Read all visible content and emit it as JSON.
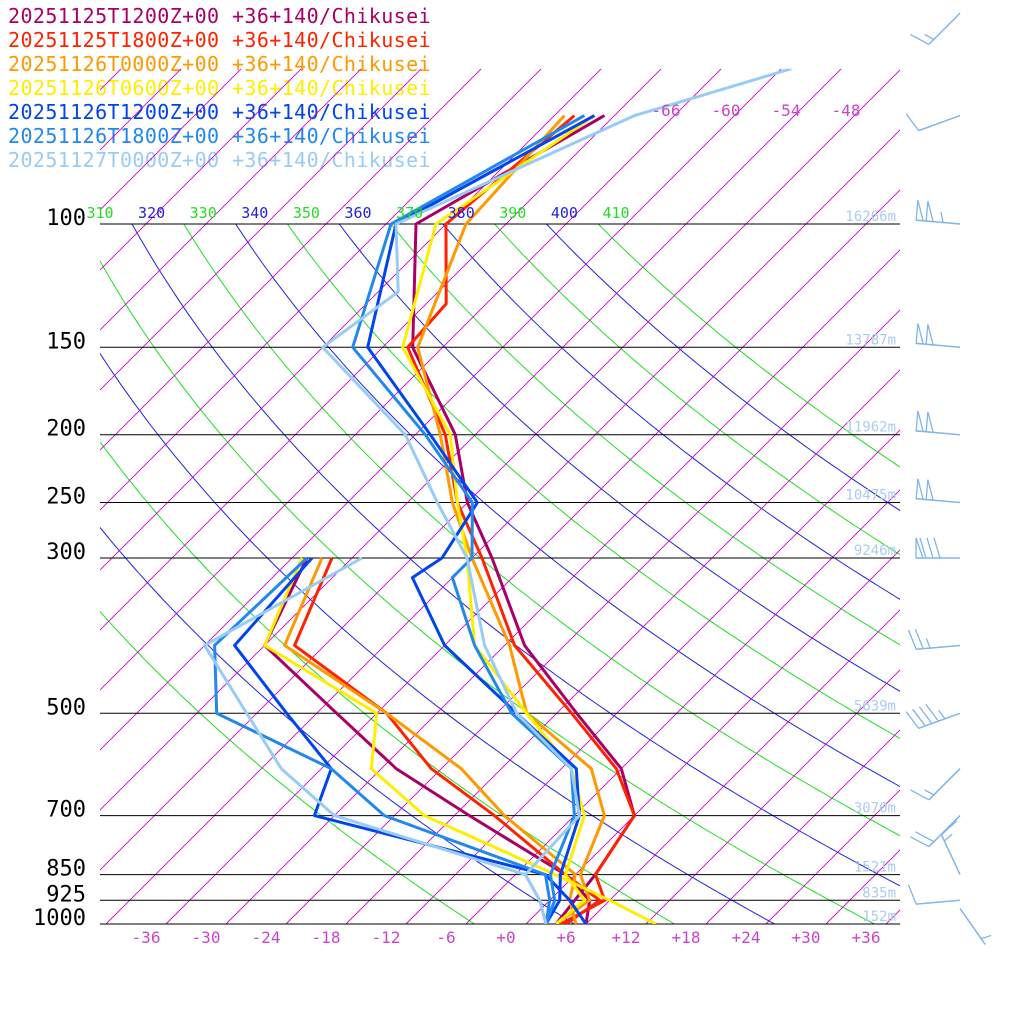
{
  "chart_data": {
    "type": "line",
    "subtype": "skew-T log-P sounding",
    "series": [
      {
        "name": "20251125T1200Z+00 +36+140/Chikusei",
        "color": "#aa0066",
        "t_points": [
          [
            1000,
            8.0
          ],
          [
            925,
            6.0
          ],
          [
            850,
            1.0
          ],
          [
            700,
            -14.5
          ],
          [
            600,
            -26.5
          ],
          [
            500,
            -38.0
          ],
          [
            400,
            -52.0
          ],
          [
            300,
            -56.5
          ]
        ],
        "td_points": [
          [
            1000,
            5.0
          ],
          [
            925,
            4.5
          ],
          [
            850,
            4.0
          ],
          [
            700,
            2.0
          ],
          [
            600,
            -4.0
          ],
          [
            500,
            -14.0
          ],
          [
            400,
            -26.0
          ],
          [
            300,
            -38.0
          ],
          [
            250,
            -46.0
          ],
          [
            200,
            -54.0
          ],
          [
            150,
            -67.0
          ],
          [
            100,
            -79.0
          ],
          [
            70,
            -71.0
          ]
        ]
      },
      {
        "name": "20251125T1800Z+00 +36+140/Chikusei",
        "color": "#ff2200",
        "t_points": [
          [
            1000,
            6.0
          ],
          [
            925,
            7.0
          ],
          [
            850,
            1.0
          ],
          [
            700,
            -12.0
          ],
          [
            600,
            -23.0
          ],
          [
            500,
            -33.0
          ],
          [
            400,
            -49.0
          ],
          [
            300,
            -54.0
          ]
        ],
        "td_points": [
          [
            1000,
            5.5
          ],
          [
            925,
            7.5
          ],
          [
            850,
            4.0
          ],
          [
            700,
            2.0
          ],
          [
            600,
            -4.5
          ],
          [
            500,
            -14.5
          ],
          [
            400,
            -27.0
          ],
          [
            300,
            -39.0
          ],
          [
            250,
            -47.0
          ],
          [
            200,
            -55.0
          ],
          [
            150,
            -67.5
          ],
          [
            130,
            -68.0
          ],
          [
            100,
            -76.0
          ],
          [
            70,
            -74.0
          ]
        ]
      },
      {
        "name": "20251126T0000Z+00 +36+140/Chikusei",
        "color": "#ff9900",
        "t_points": [
          [
            1000,
            7.0
          ],
          [
            925,
            4.0
          ],
          [
            850,
            2.0
          ],
          [
            700,
            -11.0
          ],
          [
            600,
            -20.0
          ],
          [
            500,
            -33.0
          ],
          [
            400,
            -50.0
          ],
          [
            300,
            -55.0
          ]
        ],
        "td_points": [
          [
            1000,
            5.0
          ],
          [
            925,
            6.0
          ],
          [
            850,
            2.5
          ],
          [
            700,
            -1.0
          ],
          [
            600,
            -7.0
          ],
          [
            500,
            -19.0
          ],
          [
            400,
            -27.5
          ],
          [
            300,
            -40.0
          ],
          [
            250,
            -47.5
          ],
          [
            200,
            -55.5
          ],
          [
            150,
            -66.5
          ],
          [
            100,
            -74.0
          ],
          [
            70,
            -75.0
          ]
        ]
      },
      {
        "name": "20251126T0600Z+00 +36+140/Chikusei",
        "color": "#ffee00",
        "t_points": [
          [
            1000,
            15.0
          ],
          [
            925,
            8.0
          ],
          [
            850,
            0.0
          ],
          [
            700,
            -19.0
          ],
          [
            600,
            -29.0
          ],
          [
            500,
            -34.0
          ],
          [
            400,
            -52.0
          ],
          [
            300,
            -57.0
          ]
        ],
        "td_points": [
          [
            1000,
            5.0
          ],
          [
            925,
            5.5
          ],
          [
            850,
            1.0
          ],
          [
            700,
            -3.0
          ],
          [
            600,
            -9.0
          ],
          [
            500,
            -19.0
          ],
          [
            400,
            -31.0
          ],
          [
            300,
            -40.5
          ],
          [
            250,
            -47.0
          ],
          [
            200,
            -54.5
          ],
          [
            150,
            -68.0
          ],
          [
            100,
            -77.0
          ],
          [
            70,
            -72.0
          ]
        ]
      },
      {
        "name": "20251126T1200Z+00 +36+140/Chikusei",
        "color": "#0044ee",
        "t_points": [
          [
            1000,
            8.0
          ],
          [
            925,
            4.0
          ],
          [
            850,
            -1.0
          ],
          [
            700,
            -30.0
          ],
          [
            600,
            -33.0
          ],
          [
            500,
            -43.0
          ],
          [
            400,
            -55.0
          ],
          [
            300,
            -56.0
          ]
        ],
        "td_points": [
          [
            1000,
            4.0
          ],
          [
            925,
            3.0
          ],
          [
            850,
            0.5
          ],
          [
            700,
            -3.5
          ],
          [
            600,
            -8.5
          ],
          [
            500,
            -20.0
          ],
          [
            400,
            -34.0
          ],
          [
            320,
            -44.0
          ],
          [
            300,
            -43.0
          ],
          [
            250,
            -45.0
          ],
          [
            200,
            -56.5
          ],
          [
            150,
            -71.5
          ],
          [
            100,
            -81.0
          ],
          [
            70,
            -72.0
          ]
        ]
      },
      {
        "name": "20251126T1800Z+00 +36+140/Chikusei",
        "color": "#2288ee",
        "t_points": [
          [
            1000,
            4.0
          ],
          [
            925,
            2.0
          ],
          [
            850,
            -1.0
          ],
          [
            700,
            -23.0
          ],
          [
            600,
            -33.0
          ],
          [
            500,
            -50.0
          ],
          [
            400,
            -57.0
          ],
          [
            300,
            -56.5
          ]
        ],
        "td_points": [
          [
            1000,
            4.0
          ],
          [
            925,
            2.5
          ],
          [
            850,
            -0.5
          ],
          [
            700,
            -4.0
          ],
          [
            600,
            -9.0
          ],
          [
            500,
            -20.5
          ],
          [
            400,
            -31.0
          ],
          [
            320,
            -40.0
          ],
          [
            300,
            -40.0
          ],
          [
            250,
            -45.5
          ],
          [
            200,
            -57.0
          ],
          [
            150,
            -73.0
          ],
          [
            100,
            -81.5
          ],
          [
            70,
            -73.0
          ]
        ]
      },
      {
        "name": "20251127T0000Z+00 +36+140/Chikusei",
        "color": "#99ccf5",
        "t_points": [
          [
            1000,
            4.0
          ],
          [
            925,
            1.0
          ],
          [
            850,
            -3.0
          ],
          [
            700,
            -28.0
          ],
          [
            600,
            -38.0
          ],
          [
            500,
            -47.0
          ],
          [
            400,
            -58.0
          ],
          [
            300,
            -51.0
          ]
        ],
        "td_points": [
          [
            1000,
            4.0
          ],
          [
            925,
            1.0
          ],
          [
            850,
            -3.0
          ],
          [
            700,
            -3.5
          ],
          [
            600,
            -9.0
          ],
          [
            500,
            -20.0
          ],
          [
            400,
            -30.0
          ],
          [
            300,
            -40.5
          ],
          [
            250,
            -49.0
          ],
          [
            200,
            -59.0
          ],
          [
            150,
            -76.0
          ],
          [
            125,
            -74.0
          ],
          [
            100,
            -81.0
          ],
          [
            70,
            -68.0
          ],
          [
            60,
            -57.0
          ]
        ]
      }
    ],
    "pressure_ticks": [
      "100",
      "150",
      "200",
      "250",
      "300",
      "500",
      "700",
      "850",
      "925",
      "1000"
    ],
    "pressure_levels": [
      100,
      150,
      200,
      250,
      300,
      500,
      700,
      850,
      925,
      1000
    ],
    "height_labels": [
      {
        "p": 100,
        "text": "16266m"
      },
      {
        "p": 150,
        "text": "13787m"
      },
      {
        "p": 200,
        "text": "11962m"
      },
      {
        "p": 250,
        "text": "10475m"
      },
      {
        "p": 300,
        "text": "9246m"
      },
      {
        "p": 500,
        "text": "5639m"
      },
      {
        "p": 700,
        "text": "3070m"
      },
      {
        "p": 850,
        "text": "1521m"
      },
      {
        "p": 925,
        "text": "835m"
      },
      {
        "p": 1000,
        "text": "152m"
      }
    ],
    "temperature_ticks": [
      "-36",
      "-30",
      "-24",
      "-18",
      "-12",
      "-6",
      "+0",
      "+6",
      "+12",
      "+18",
      "+24",
      "+30",
      "+36"
    ],
    "temperature_tick_values": [
      -36,
      -30,
      -24,
      -18,
      -12,
      -6,
      0,
      6,
      12,
      18,
      24,
      30,
      36
    ],
    "upper_temperature_ticks": [
      "-66",
      "-60",
      "-54",
      "-48"
    ],
    "upper_temperature_tick_values": [
      -66,
      -60,
      -54,
      -48
    ],
    "theta_labels": [
      "310",
      "320",
      "330",
      "340",
      "350",
      "360",
      "370",
      "380",
      "390",
      "400",
      "410"
    ],
    "theta_values": [
      310,
      320,
      330,
      340,
      350,
      360,
      370,
      380,
      390,
      400,
      410
    ],
    "theta_line_values": [
      270,
      280,
      290,
      300,
      310,
      320,
      330,
      340,
      350,
      360,
      370,
      380,
      390,
      400,
      410
    ],
    "xlim": [
      -40,
      40
    ],
    "pressure_range": [
      60,
      1000
    ],
    "log_pressure": true,
    "grid": true,
    "legend_position": "top-left",
    "colors": {
      "isotherm": "#cc00cc",
      "theta_odd": "#22dd22",
      "theta_even": "#2222dd",
      "isobar": "#000000",
      "pressure_label": "#000000",
      "temp_label": "#cc44cc",
      "height_label": "#aaccf0",
      "wind_barb": "#7fb5e8"
    },
    "wind_barbs": [
      {
        "p": 50,
        "speed_kt": 15,
        "dir_deg": 225
      },
      {
        "p": 70,
        "speed_kt": 10,
        "dir_deg": 250
      },
      {
        "p": 100,
        "speed_kt": 105,
        "dir_deg": 275
      },
      {
        "p": 150,
        "speed_kt": 100,
        "dir_deg": 275
      },
      {
        "p": 200,
        "speed_kt": 100,
        "dir_deg": 275
      },
      {
        "p": 250,
        "speed_kt": 100,
        "dir_deg": 275
      },
      {
        "p": 300,
        "speed_kt": 80,
        "dir_deg": 270
      },
      {
        "p": 400,
        "speed_kt": 25,
        "dir_deg": 265
      },
      {
        "p": 500,
        "speed_kt": 45,
        "dir_deg": 250
      },
      {
        "p": 600,
        "speed_kt": 15,
        "dir_deg": 225
      },
      {
        "p": 700,
        "speed_kt": 20,
        "dir_deg": 225
      },
      {
        "p": 850,
        "speed_kt": 15,
        "dir_deg": 335
      },
      {
        "p": 925,
        "speed_kt": 10,
        "dir_deg": 265
      },
      {
        "p": 950,
        "speed_kt": 5,
        "dir_deg": 145
      }
    ]
  }
}
